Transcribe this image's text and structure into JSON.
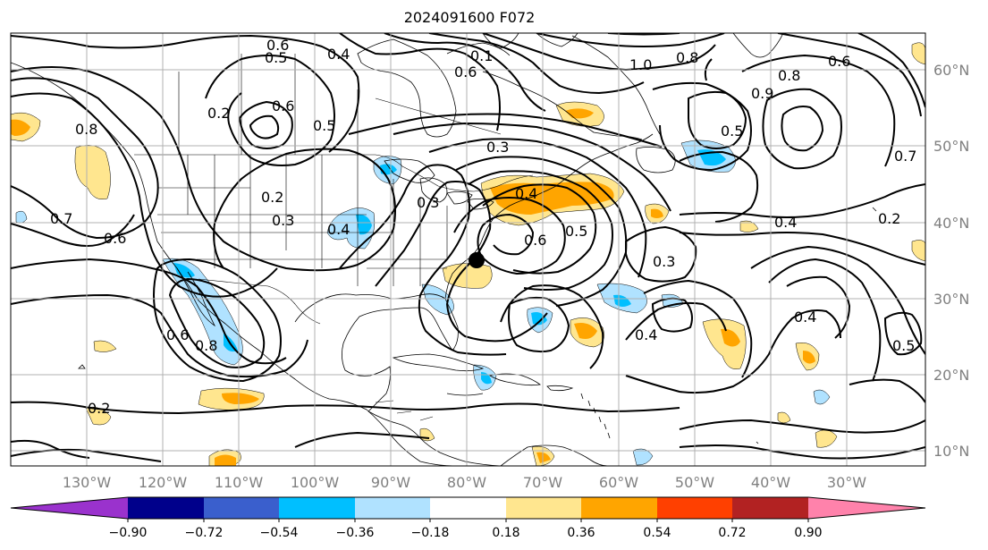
{
  "title": "2024091600 F072",
  "map": {
    "lon_labels": [
      "130°W",
      "120°W",
      "110°W",
      "100°W",
      "90°W",
      "80°W",
      "70°W",
      "60°W",
      "50°W",
      "40°W",
      "30°W"
    ],
    "lat_labels": [
      "60°N",
      "50°N",
      "40°N",
      "30°N",
      "20°N",
      "10°N"
    ],
    "marker": {
      "name": "storm-center",
      "lon": -79.0,
      "lat": 35.2
    },
    "contour_labels": [
      "0.5",
      "0.6",
      "0.4",
      "0.1",
      "1.0",
      "0.8",
      "0.6",
      "0.6",
      "0.2",
      "0.6",
      "0.5",
      "0.3",
      "0.9",
      "0.8",
      "0.5",
      "0.8",
      "0.7",
      "0.7",
      "0.6",
      "0.2",
      "0.4",
      "0.3",
      "0.3",
      "0.4",
      "0.6",
      "0.5",
      "0.4",
      "0.3",
      "0.4",
      "0.4",
      "0.5",
      "0.2",
      "0.2",
      "0.6",
      "0.8"
    ]
  },
  "colorbar": {
    "ticks": [
      "−0.90",
      "−0.72",
      "−0.54",
      "−0.36",
      "−0.18",
      "0.18",
      "0.36",
      "0.54",
      "0.72",
      "0.90"
    ],
    "colors": [
      "#9a32cd",
      "#00008b",
      "#3a5fcd",
      "#00bfff",
      "#b0e2ff",
      "#ffffff",
      "#ffe68f",
      "#ffa500",
      "#ff4000",
      "#b22222",
      "#ff82ab"
    ]
  }
}
